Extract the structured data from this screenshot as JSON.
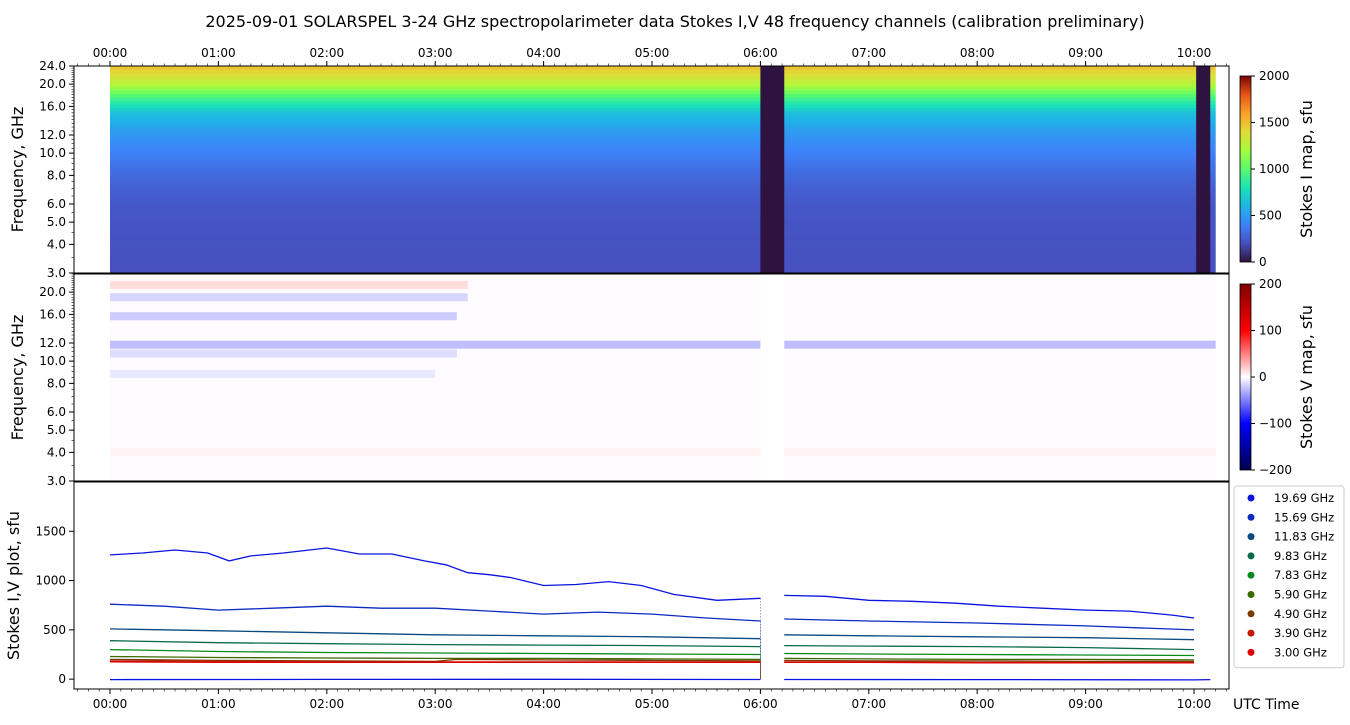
{
  "title": "2025-09-01  SOLARSPEL  3-24 GHz spectropolarimeter data   Stokes I,V   48 frequency channels   (calibration preliminary)",
  "time_ticks": [
    "00:00",
    "01:00",
    "02:00",
    "03:00",
    "04:00",
    "05:00",
    "06:00",
    "07:00",
    "08:00",
    "09:00",
    "10:00"
  ],
  "utc_label": "UTC Time",
  "chart_data": [
    {
      "type": "heatmap",
      "name": "stokes-i-map",
      "ylabel": "Frequency, GHz",
      "ylim": [
        3.0,
        24.0
      ],
      "yscale": "log",
      "y_ticks": [
        "24.0",
        "20.0",
        "16.0",
        "12.0",
        "10.0",
        "8.0",
        "6.0",
        "5.0",
        "4.0",
        "3.0"
      ],
      "x_range_hours": [
        0.0,
        10.2
      ],
      "colorbar": {
        "label": "Stokes I map, sfu",
        "min": 0,
        "max": 2000,
        "ticks": [
          "2000",
          "1500",
          "1000",
          "500",
          "0"
        ],
        "colormap": "turbo-like"
      },
      "gaps_hours": [
        [
          6.0,
          6.22
        ],
        [
          10.02,
          10.15
        ]
      ],
      "gap_color": "#2e1240",
      "frequency_profile": [
        {
          "freq": 3.0,
          "sfu": 200
        },
        {
          "freq": 6.0,
          "sfu": 230
        },
        {
          "freq": 8.0,
          "sfu": 300
        },
        {
          "freq": 10.0,
          "sfu": 390
        },
        {
          "freq": 12.0,
          "sfu": 480
        },
        {
          "freq": 15.0,
          "sfu": 650
        },
        {
          "freq": 16.0,
          "sfu": 760
        },
        {
          "freq": 18.0,
          "sfu": 1000
        },
        {
          "freq": 20.0,
          "sfu": 1250
        },
        {
          "freq": 24.0,
          "sfu": 1500
        }
      ]
    },
    {
      "type": "heatmap",
      "name": "stokes-v-map",
      "ylabel": "Frequency, GHz",
      "ylim": [
        3.0,
        24.0
      ],
      "yscale": "log",
      "y_ticks": [
        "20.0",
        "16.0",
        "12.0",
        "10.0",
        "8.0",
        "6.0",
        "5.0",
        "4.0",
        "3.0"
      ],
      "x_range_hours": [
        0.0,
        10.2
      ],
      "colorbar": {
        "label": "Stokes V map, sfu",
        "min": -200,
        "max": 200,
        "ticks": [
          "200",
          "100",
          "0",
          "−100",
          "−200"
        ],
        "colormap": "seismic"
      },
      "bands": [
        {
          "freq": 21.5,
          "sfu": 15,
          "t_end": 3.3
        },
        {
          "freq": 19.0,
          "sfu": -18,
          "t_end": 3.3
        },
        {
          "freq": 15.7,
          "sfu": -22,
          "t_end": 3.2
        },
        {
          "freq": 11.8,
          "sfu": -28,
          "t_end": 10.2
        },
        {
          "freq": 10.8,
          "sfu": -15,
          "t_end": 3.2
        },
        {
          "freq": 8.8,
          "sfu": -10,
          "t_end": 3.0
        },
        {
          "freq": 4.0,
          "sfu": 5,
          "t_end": 10.2
        }
      ]
    },
    {
      "type": "line",
      "name": "stokes-iv-plot",
      "ylabel": "Stokes I,V plot, sfu",
      "ylim": [
        -100,
        2000
      ],
      "y_ticks": [
        0,
        500,
        1000,
        1500
      ],
      "x_range_hours": [
        0.0,
        10.2
      ],
      "legend_position": "right",
      "series": [
        {
          "name": "19.69 GHz",
          "color": "#0a14e0",
          "x": [
            0.0,
            0.3,
            0.6,
            0.9,
            1.1,
            1.3,
            1.6,
            2.0,
            2.3,
            2.6,
            2.9,
            3.1,
            3.3,
            3.5,
            3.7,
            4.0,
            4.3,
            4.6,
            4.9,
            5.2,
            5.6,
            6.0
          ],
          "y": [
            1260,
            1280,
            1310,
            1280,
            1200,
            1250,
            1280,
            1330,
            1270,
            1270,
            1200,
            1160,
            1080,
            1060,
            1030,
            950,
            960,
            990,
            950,
            860,
            800,
            820
          ],
          "x2": [
            6.22,
            6.6,
            7.0,
            7.4,
            7.8,
            8.2,
            8.6,
            9.0,
            9.4,
            9.8,
            10.0
          ],
          "y2": [
            850,
            840,
            800,
            790,
            770,
            740,
            720,
            700,
            690,
            650,
            620
          ]
        },
        {
          "name": "15.69 GHz",
          "color": "#0a2bc2",
          "x": [
            0.0,
            0.5,
            1.0,
            1.5,
            2.0,
            2.5,
            3.0,
            3.5,
            4.0,
            4.5,
            5.0,
            5.5,
            6.0
          ],
          "y": [
            760,
            740,
            700,
            720,
            740,
            720,
            720,
            690,
            660,
            680,
            660,
            620,
            590
          ],
          "x2": [
            6.22,
            7.0,
            8.0,
            9.0,
            10.0
          ],
          "y2": [
            610,
            590,
            570,
            540,
            500
          ]
        },
        {
          "name": "11.83 GHz",
          "color": "#0a4a80",
          "x": [
            0.0,
            1.0,
            2.0,
            3.0,
            4.0,
            5.0,
            6.0
          ],
          "y": [
            510,
            490,
            470,
            450,
            440,
            430,
            410
          ],
          "x2": [
            6.22,
            7.0,
            8.0,
            9.0,
            10.0
          ],
          "y2": [
            450,
            440,
            430,
            420,
            400
          ]
        },
        {
          "name": "9.83 GHz",
          "color": "#0a6a4a",
          "x": [
            0.0,
            1.0,
            2.0,
            3.0,
            4.0,
            5.0,
            6.0
          ],
          "y": [
            390,
            370,
            360,
            350,
            345,
            340,
            330
          ],
          "x2": [
            6.22,
            7.0,
            8.0,
            9.0,
            10.0
          ],
          "y2": [
            340,
            335,
            330,
            320,
            300
          ]
        },
        {
          "name": "7.83 GHz",
          "color": "#078a1c",
          "x": [
            0.0,
            1.0,
            2.0,
            3.0,
            4.0,
            5.0,
            6.0
          ],
          "y": [
            300,
            280,
            270,
            265,
            260,
            255,
            250
          ],
          "x2": [
            6.22,
            7.0,
            8.0,
            9.0,
            10.0
          ],
          "y2": [
            260,
            255,
            250,
            245,
            240
          ]
        },
        {
          "name": "5.90 GHz",
          "color": "#3a6a00",
          "x": [
            0.0,
            1.0,
            2.0,
            3.0,
            4.0,
            5.0,
            6.0
          ],
          "y": [
            230,
            220,
            215,
            210,
            210,
            205,
            200
          ],
          "x2": [
            6.22,
            7.0,
            8.0,
            9.0,
            10.0
          ],
          "y2": [
            210,
            205,
            200,
            200,
            195
          ]
        },
        {
          "name": "4.90 GHz",
          "color": "#7a3a00",
          "x": [
            0.0,
            1.0,
            2.0,
            3.0,
            3.2,
            4.0,
            5.0,
            6.0
          ],
          "y": [
            200,
            190,
            185,
            180,
            200,
            195,
            190,
            185
          ],
          "x2": [
            6.22,
            7.0,
            8.0,
            9.0,
            10.0
          ],
          "y2": [
            190,
            185,
            185,
            180,
            180
          ]
        },
        {
          "name": "3.90 GHz",
          "color": "#c41a00",
          "x": [
            0.0,
            1.0,
            2.0,
            3.0,
            4.0,
            5.0,
            6.0
          ],
          "y": [
            185,
            180,
            175,
            175,
            175,
            175,
            175
          ],
          "x2": [
            6.22,
            7.0,
            8.0,
            9.0,
            10.0
          ],
          "y2": [
            175,
            175,
            170,
            170,
            170
          ]
        },
        {
          "name": "3.00 GHz",
          "color": "#e00000",
          "x": [
            0.0,
            1.0,
            2.0,
            3.0,
            4.0,
            5.0,
            6.0
          ],
          "y": [
            175,
            170,
            170,
            170,
            170,
            170,
            170
          ],
          "x2": [
            6.22,
            7.0,
            8.0,
            9.0,
            10.0
          ],
          "y2": [
            170,
            170,
            165,
            165,
            165
          ]
        },
        {
          "name": "",
          "color": "#0a14e0",
          "x": [
            0.0,
            2.0,
            4.0,
            6.0
          ],
          "y": [
            -5,
            -3,
            -2,
            -4
          ],
          "x2": [
            6.22,
            8.0,
            10.0,
            10.15
          ],
          "y2": [
            -4,
            -5,
            -8,
            -5
          ]
        }
      ]
    }
  ]
}
